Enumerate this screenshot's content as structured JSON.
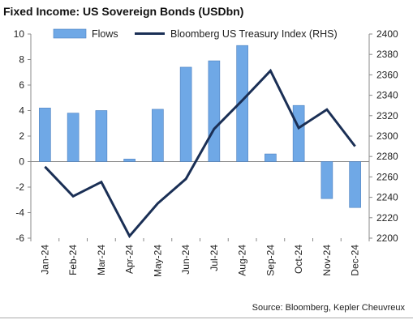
{
  "header": {
    "title": "Fixed Income: US Sovereign Bonds (USDbn)"
  },
  "footer": {
    "source": "Source: Bloomberg, Kepler Cheuvreux"
  },
  "chart_data": {
    "type": "bar",
    "title": "Fixed Income: US Sovereign Bonds (USDbn)",
    "categories": [
      "Jan-24",
      "Feb-24",
      "Mar-24",
      "Apr-24",
      "May-24",
      "Jun-24",
      "Jul-24",
      "Aug-24",
      "Sep-24",
      "Oct-24",
      "Nov-24",
      "Dec-24"
    ],
    "series": [
      {
        "name": "Flows",
        "type": "bar",
        "axis": "left",
        "color": "#6fa8e6",
        "values": [
          4.2,
          3.8,
          4.0,
          0.2,
          4.1,
          7.4,
          7.9,
          9.1,
          0.6,
          4.4,
          -2.9,
          -3.6
        ]
      },
      {
        "name": "Bloomberg US Treasury Index (RHS)",
        "type": "line",
        "axis": "right",
        "color": "#1a2f55",
        "values": [
          2270,
          2241,
          2255,
          2202,
          2234,
          2258,
          2307,
          2335,
          2364,
          2308,
          2326,
          2290
        ]
      }
    ],
    "y_left": {
      "range": [
        -6,
        10
      ],
      "ticks": [
        -6,
        -4,
        -2,
        0,
        2,
        4,
        6,
        8,
        10
      ]
    },
    "y_right": {
      "range": [
        2200,
        2400
      ],
      "ticks": [
        2200,
        2220,
        2240,
        2260,
        2280,
        2300,
        2320,
        2340,
        2360,
        2380,
        2400
      ]
    },
    "grid": false,
    "legend_position": "top"
  }
}
